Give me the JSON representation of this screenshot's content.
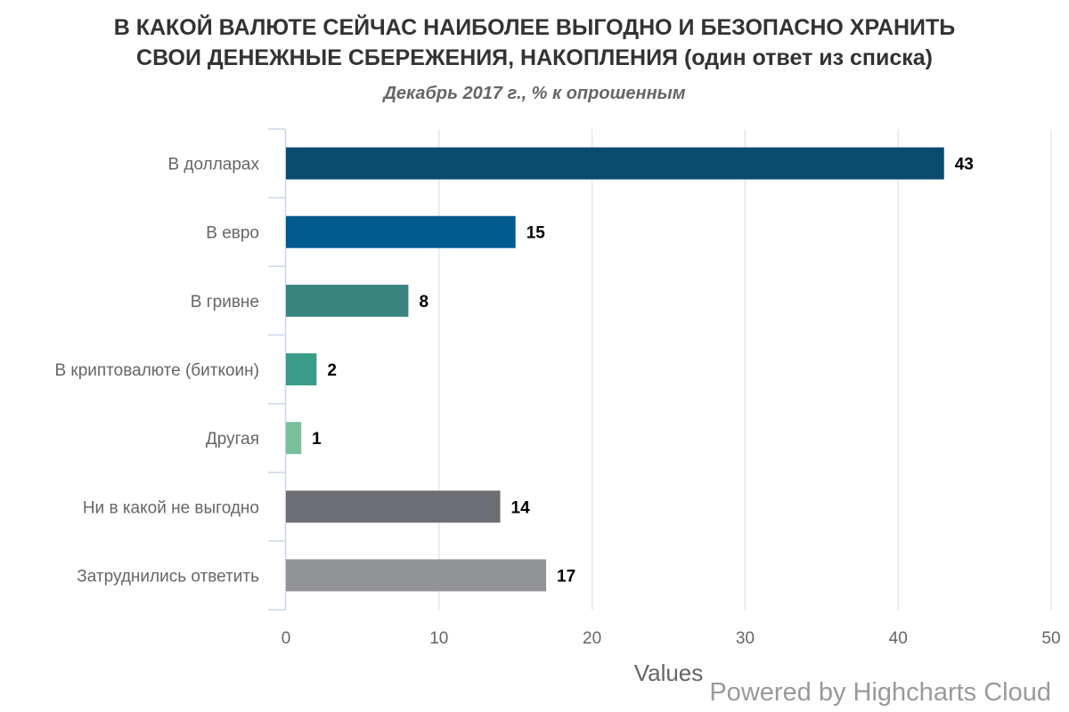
{
  "chart_data": {
    "type": "bar",
    "orientation": "horizontal",
    "title_lines": [
      "В КАКОЙ ВАЛЮТЕ СЕЙЧАС НАИБОЛЕЕ ВЫГОДНО И БЕЗОПАСНО ХРАНИТЬ",
      "СВОИ ДЕНЕЖНЫЕ СБЕРЕЖЕНИЯ, НАКОПЛЕНИЯ (один ответ из списка)"
    ],
    "subtitle": "Декабрь 2017 г., % к опрошенным",
    "xlabel": "Values",
    "xlim": [
      0,
      50
    ],
    "xticks": [
      0,
      10,
      20,
      30,
      40,
      50
    ],
    "grid": true,
    "legend": "none",
    "categories": [
      "В долларах",
      "В евро",
      "В гривне",
      "В криптовалюте (биткоин)",
      "Другая",
      "Ни в какой не выгодно",
      "Затруднились ответить"
    ],
    "values": [
      43,
      15,
      8,
      2,
      1,
      14,
      17
    ],
    "colors": [
      "#0b4a6f",
      "#005a8d",
      "#3a8480",
      "#3a9c88",
      "#7abf9c",
      "#6d6e73",
      "#929397"
    ],
    "data_labels": true
  },
  "credits": "Powered by Highcharts Cloud"
}
